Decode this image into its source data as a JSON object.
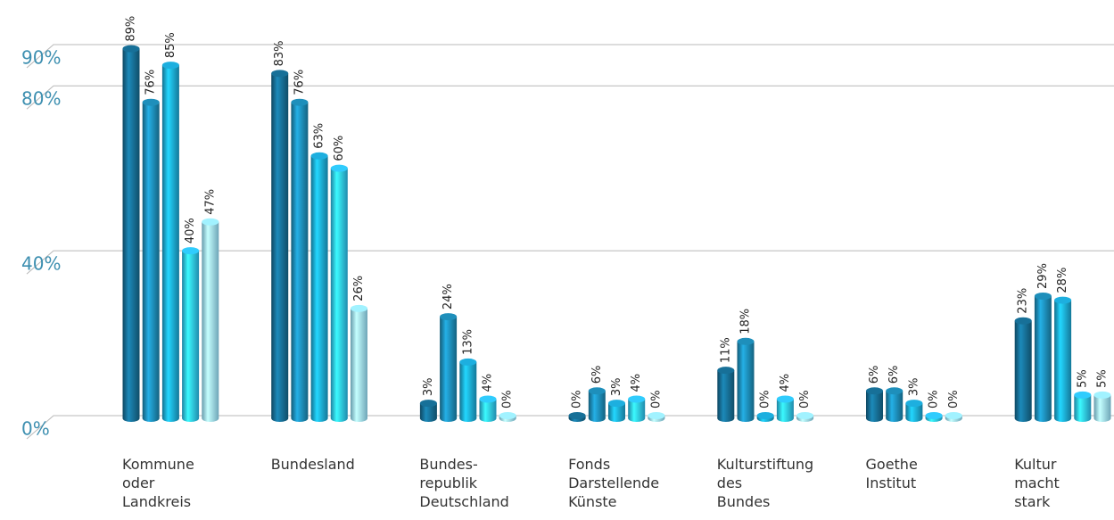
{
  "chart_data": {
    "type": "bar",
    "categories": [
      "Kommune oder Landkreis",
      "Bundesland",
      "Bundes-republik Deutschland",
      "Fonds Darstellende Künste",
      "Kulturstiftung des Bundes",
      "Goethe Institut",
      "Kultur macht stark"
    ],
    "series": [
      {
        "color": "#15668a",
        "values": [
          89,
          83,
          3,
          0,
          11,
          6,
          23
        ],
        "value_labels": [
          "89%",
          "83%",
          "3%",
          "0%",
          "11%",
          "6%",
          "23%"
        ]
      },
      {
        "color": "#1b82aa",
        "values": [
          76,
          76,
          24,
          6,
          18,
          6,
          29
        ],
        "value_labels": [
          "76%",
          "76%",
          "24%",
          "6%",
          "18%",
          "6%",
          "29%"
        ]
      },
      {
        "color": "#1a9fcb",
        "values": [
          85,
          63,
          13,
          3,
          0,
          3,
          28
        ],
        "value_labels": [
          "85%",
          "63%",
          "13%",
          "3%",
          "0%",
          "3%",
          "28%"
        ]
      },
      {
        "color": "#2cb9e6",
        "values": [
          40,
          60,
          4,
          4,
          4,
          0,
          5
        ],
        "value_labels": [
          "40%",
          "60%",
          "4%",
          "4%",
          "4%",
          "0%",
          "5%"
        ]
      },
      {
        "color": "#92dcf4",
        "values": [
          47,
          26,
          0,
          0,
          0,
          0,
          5
        ],
        "value_labels": [
          "47%",
          "26%",
          "0%",
          "0%",
          "0%",
          "0%",
          "5%"
        ]
      }
    ],
    "ylim": [
      0,
      90
    ],
    "yticks": [
      {
        "value": 0,
        "label": "0%"
      },
      {
        "value": 40,
        "label": "40%"
      },
      {
        "value": 80,
        "label": "80%"
      },
      {
        "value": 90,
        "label": "90%"
      }
    ],
    "grid": true
  }
}
